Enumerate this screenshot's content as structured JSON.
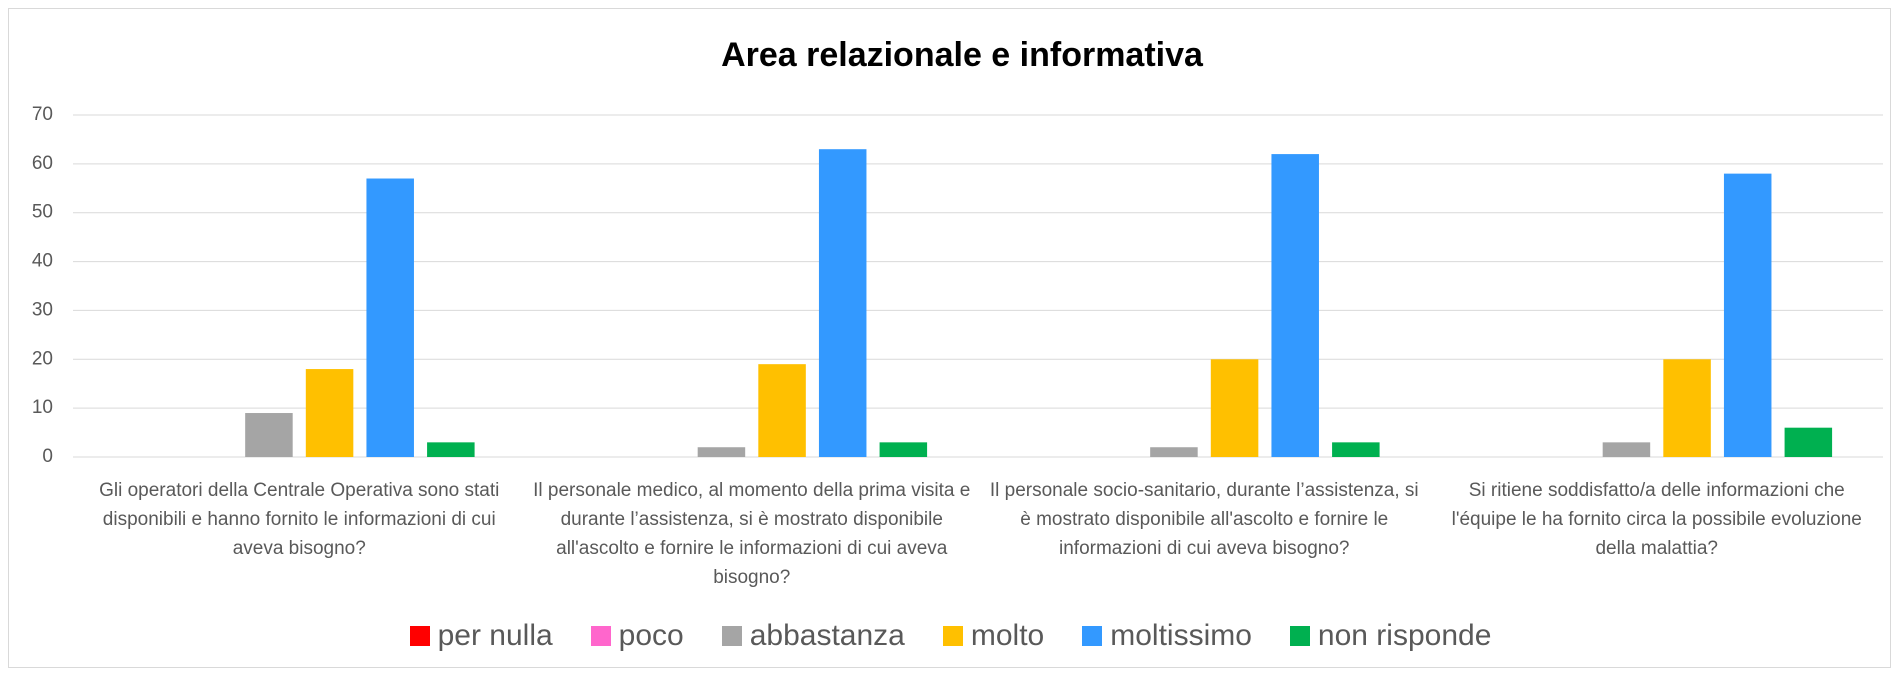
{
  "chart_data": {
    "type": "bar",
    "title": "Area relazionale e informativa",
    "categories": [
      "Gli operatori della Centrale Operativa sono stati disponibili e hanno fornito le informazioni di cui aveva bisogno?",
      "Il personale medico, al momento della prima visita e durante l’assistenza, si è mostrato disponibile all'ascolto e fornire le informazioni di cui aveva bisogno?",
      "Il personale socio-sanitario, durante l’assistenza, si è mostrato disponibile all'ascolto e fornire le informazioni di cui aveva bisogno?",
      "Si ritiene soddisfatto/a delle informazioni che l'équipe le ha fornito circa la possibile evoluzione della malattia?"
    ],
    "series": [
      {
        "name": "per nulla",
        "color": "#ff0000",
        "values": [
          0,
          0,
          0,
          0
        ]
      },
      {
        "name": "poco",
        "color": "#ff66cc",
        "values": [
          0,
          0,
          0,
          0
        ]
      },
      {
        "name": "abbastanza",
        "color": "#a5a5a5",
        "values": [
          9,
          2,
          2,
          3
        ]
      },
      {
        "name": "molto",
        "color": "#ffc000",
        "values": [
          18,
          19,
          20,
          20
        ]
      },
      {
        "name": "moltissimo",
        "color": "#3399ff",
        "values": [
          57,
          63,
          62,
          58
        ]
      },
      {
        "name": "non risponde",
        "color": "#00b050",
        "values": [
          3,
          3,
          3,
          6
        ]
      }
    ],
    "ylim": [
      0,
      70
    ],
    "yticks": [
      0,
      10,
      20,
      30,
      40,
      50,
      60,
      70
    ],
    "grid": true,
    "legend": "bottom"
  }
}
